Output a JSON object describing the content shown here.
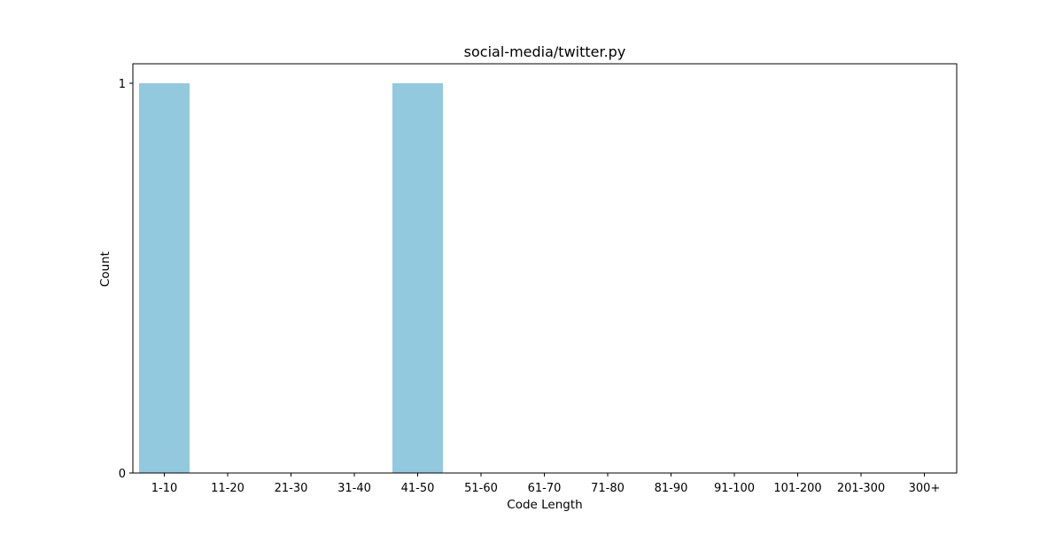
{
  "chart_data": {
    "type": "bar",
    "title": "social-media/twitter.py",
    "xlabel": "Code Length",
    "ylabel": "Count",
    "categories": [
      "1-10",
      "11-20",
      "21-30",
      "31-40",
      "41-50",
      "51-60",
      "61-70",
      "71-80",
      "81-90",
      "91-100",
      "101-200",
      "201-300",
      "300+"
    ],
    "values": [
      1,
      0,
      0,
      0,
      1,
      0,
      0,
      0,
      0,
      0,
      0,
      0,
      0
    ],
    "yticks": [
      0,
      1
    ],
    "ylim": [
      0,
      1.05
    ],
    "grid": false,
    "legend": "none",
    "bar_color": "#92c9de"
  }
}
